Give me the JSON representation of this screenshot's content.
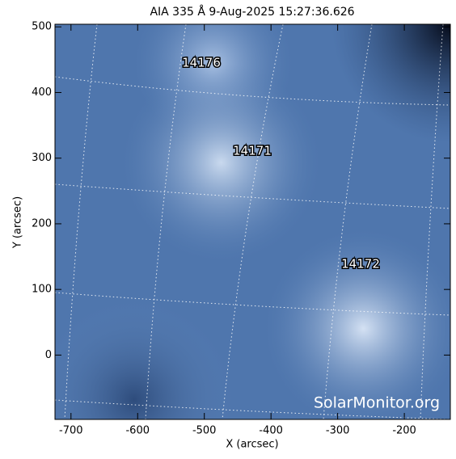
{
  "chart_data": {
    "type": "image",
    "title": "AIA 335 Å  9-Aug-2025 15:27:36.626",
    "x_label": "X (arcsec)",
    "y_label": "Y (arcsec)",
    "xlim": [
      -724,
      -131
    ],
    "ylim": [
      -98,
      504
    ],
    "xticks": [
      -700,
      -600,
      -500,
      -400,
      -300,
      -200
    ],
    "yticks": [
      0,
      100,
      200,
      300,
      400,
      500
    ],
    "annotations": [
      "14176",
      "14171",
      "14172"
    ],
    "watermark": "SolarMonitor.org"
  }
}
